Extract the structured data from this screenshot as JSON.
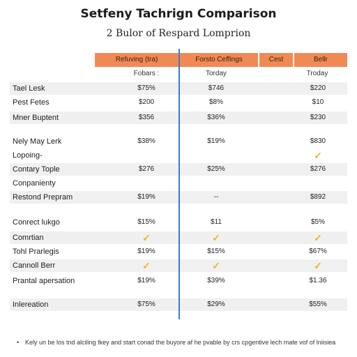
{
  "title": "Setfeny Tachrign Comparison",
  "subtitle": "2 Bulor of Respard Lomprion",
  "columns": [
    {
      "label": "Refuving (tra)",
      "sub": "Fobars :"
    },
    {
      "label": "Forsto Ceffings",
      "sub": "Torday"
    },
    {
      "label": "Cest",
      "sub": ""
    },
    {
      "label": "Bellr",
      "sub": "Troday"
    }
  ],
  "rows": [
    {
      "label": "Tael Lesk",
      "values": [
        "$75%",
        "$746",
        "$220"
      ]
    },
    {
      "label": "Pest Fetes",
      "values": [
        "$200",
        "$8%",
        "$10"
      ]
    },
    {
      "label": "Mner Buptent",
      "values": [
        "$356",
        "$36%",
        "$230"
      ]
    },
    {
      "label": "Nely May Lerk",
      "values": [
        "$38%",
        "$19%",
        "$830"
      ]
    },
    {
      "label": "Lopoing-",
      "values": [
        "",
        "",
        "✓"
      ]
    },
    {
      "label": "Contary Tople",
      "values": [
        "$276",
        "$25%",
        "$276"
      ]
    },
    {
      "label": "Conpanienty",
      "values": [
        "",
        "",
        ""
      ]
    },
    {
      "label": "Restond Prepram",
      "values": [
        "$19%",
        "--",
        "$892"
      ]
    },
    {
      "label": "Conrect lukgo",
      "values": [
        "$15%",
        "$11",
        "$5%"
      ]
    },
    {
      "label": "Comrtian",
      "values": [
        "✓",
        "✓",
        "✓"
      ]
    },
    {
      "label": "Tohl Prarlegis",
      "values": [
        "$19%",
        "$15%",
        "$67%"
      ]
    },
    {
      "label": "Cannoll Berr",
      "values": [
        "✓",
        "✓",
        "✓"
      ]
    },
    {
      "label": "Prantal apersation",
      "values": [
        "$19%",
        "$39%",
        "$1.36"
      ]
    },
    {
      "label": "Inlereation",
      "values": [
        "$75%",
        "$29%",
        "$55%"
      ]
    }
  ],
  "footnote": "Kely un be los tnd alciling tkey and start conad the buyore af he pvable by crs cpgentive lech mate vof of lniisiea",
  "colors": {
    "header": "#f08a55",
    "shaded_row": "#f0f0f0",
    "divider": "#3a7bc8",
    "check": "#f0b323"
  }
}
